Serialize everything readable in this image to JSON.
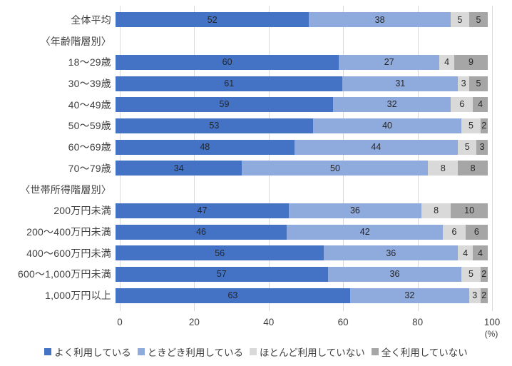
{
  "chart_data": {
    "type": "bar",
    "orientation": "horizontal",
    "stacked": true,
    "title": "",
    "unit_label": "(%)",
    "xlim": [
      0,
      100
    ],
    "x_ticks": [
      "0",
      "20",
      "40",
      "60",
      "80",
      "100"
    ],
    "grid": "vertical",
    "legend_position": "bottom",
    "series": [
      {
        "name": "よく利用している",
        "color": "#4472C4"
      },
      {
        "name": "ときどき利用している",
        "color": "#8FAADC"
      },
      {
        "name": "ほとんど利用していない",
        "color": "#D9D9D9"
      },
      {
        "name": "全く利用していない",
        "color": "#A6A6A6"
      }
    ],
    "rows": [
      {
        "label": "全体平均",
        "header": false,
        "values": [
          52,
          38,
          5,
          5
        ]
      },
      {
        "label": "〈年齢階層別〉",
        "header": true,
        "values": null
      },
      {
        "label": "18〜29歳",
        "header": false,
        "values": [
          60,
          27,
          4,
          9
        ]
      },
      {
        "label": "30〜39歳",
        "header": false,
        "values": [
          61,
          31,
          3,
          5
        ]
      },
      {
        "label": "40〜49歳",
        "header": false,
        "values": [
          59,
          32,
          6,
          4
        ]
      },
      {
        "label": "50〜59歳",
        "header": false,
        "values": [
          53,
          40,
          5,
          2
        ]
      },
      {
        "label": "60〜69歳",
        "header": false,
        "values": [
          48,
          44,
          5,
          3
        ]
      },
      {
        "label": "70〜79歳",
        "header": false,
        "values": [
          34,
          50,
          8,
          8
        ]
      },
      {
        "label": "〈世帯所得階層別〉",
        "header": true,
        "values": null
      },
      {
        "label": "200万円未満",
        "header": false,
        "values": [
          47,
          36,
          8,
          10
        ]
      },
      {
        "label": "200〜400万円未満",
        "header": false,
        "values": [
          46,
          42,
          6,
          6
        ]
      },
      {
        "label": "400〜600万円未満",
        "header": false,
        "values": [
          56,
          36,
          4,
          4
        ]
      },
      {
        "label": "600〜1,000万円未満",
        "header": false,
        "values": [
          57,
          36,
          5,
          2
        ]
      },
      {
        "label": "1,000万円以上",
        "header": false,
        "values": [
          63,
          32,
          3,
          2
        ]
      }
    ]
  },
  "colors": {
    "background": "#FFFFFF",
    "gridline": "#D9D9D9",
    "label_text": "#404040",
    "value_text": "#262626"
  }
}
